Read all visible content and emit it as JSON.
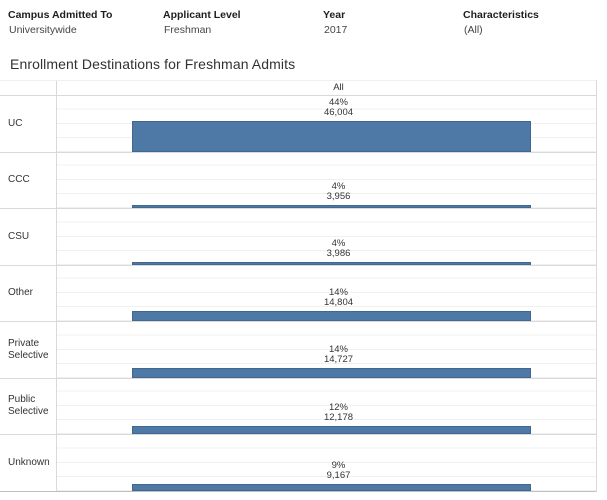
{
  "filters": [
    {
      "label": "Campus Admitted To",
      "value": "Universitywide"
    },
    {
      "label": "Applicant Level",
      "value": "Freshman"
    },
    {
      "label": "Year",
      "value": "2017"
    },
    {
      "label": "Characteristics",
      "value": "(All)"
    }
  ],
  "title": "Enrollment Destinations for Freshman Admits",
  "chart_data": {
    "type": "bar",
    "title": "Enrollment Destinations for Freshman Admits",
    "column_header": "All",
    "value_encoding": "bar thickness encodes percent of admits",
    "categories": [
      "UC",
      "CCC",
      "CSU",
      "Other",
      "Private Selective",
      "Public Selective",
      "Unknown"
    ],
    "series": [
      {
        "name": "Percent",
        "values": [
          44,
          4,
          4,
          14,
          14,
          12,
          9
        ]
      },
      {
        "name": "Count",
        "values": [
          46004,
          3956,
          3986,
          14804,
          14727,
          12178,
          9167
        ]
      }
    ],
    "bar_color": "#4e79a7",
    "rows": [
      {
        "category": "UC",
        "percent": 44,
        "percent_label": "44%",
        "count_label": "46,004"
      },
      {
        "category": "CCC",
        "percent": 4,
        "percent_label": "4%",
        "count_label": "3,956"
      },
      {
        "category": "CSU",
        "percent": 4,
        "percent_label": "4%",
        "count_label": "3,986"
      },
      {
        "category": "Other",
        "percent": 14,
        "percent_label": "14%",
        "count_label": "14,804"
      },
      {
        "category": "Private Selective",
        "percent": 14,
        "percent_label": "14%",
        "count_label": "14,727"
      },
      {
        "category": "Public Selective",
        "percent": 12,
        "percent_label": "12%",
        "count_label": "12,178"
      },
      {
        "category": "Unknown",
        "percent": 9,
        "percent_label": "9%",
        "count_label": "9,167"
      }
    ]
  }
}
